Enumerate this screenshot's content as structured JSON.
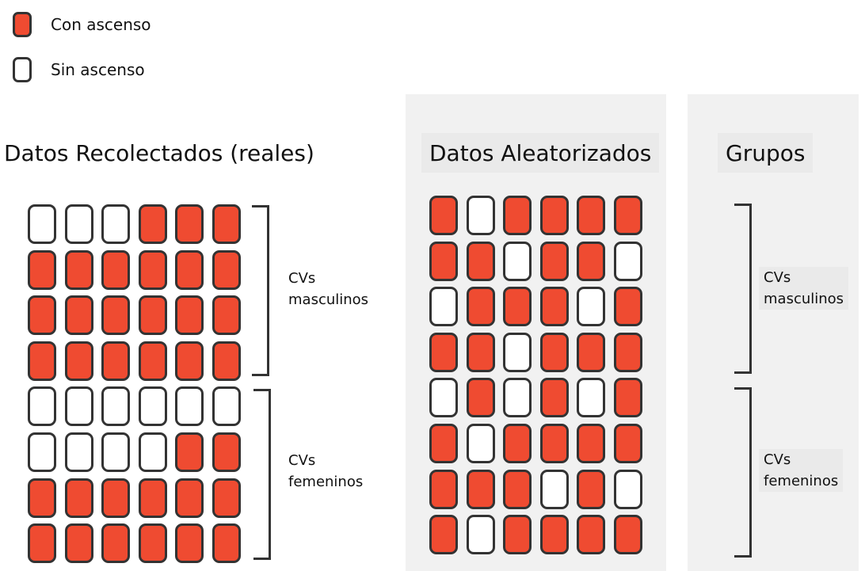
{
  "colors": {
    "con_ascenso": "#ef4b31",
    "sin_ascenso": "#ffffff",
    "border": "#333333"
  },
  "legend": {
    "con_ascenso": "Con ascenso",
    "sin_ascenso": "Sin ascenso"
  },
  "collected": {
    "title": "Datos Recolectados (reales)",
    "rows": [
      [
        0,
        0,
        0,
        1,
        1,
        1
      ],
      [
        1,
        1,
        1,
        1,
        1,
        1
      ],
      [
        1,
        1,
        1,
        1,
        1,
        1
      ],
      [
        1,
        1,
        1,
        1,
        1,
        1
      ],
      [
        0,
        0,
        0,
        0,
        0,
        0
      ],
      [
        0,
        0,
        0,
        0,
        1,
        1
      ],
      [
        1,
        1,
        1,
        1,
        1,
        1
      ],
      [
        1,
        1,
        1,
        1,
        1,
        1
      ]
    ],
    "male_label": {
      "line1": "CVs",
      "line2": "masculinos"
    },
    "female_label": {
      "line1": "CVs",
      "line2": "femeninos"
    }
  },
  "randomized": {
    "title": "Datos Aleatorizados",
    "rows": [
      [
        1,
        0,
        1,
        1,
        1,
        1
      ],
      [
        1,
        1,
        0,
        1,
        1,
        0
      ],
      [
        0,
        1,
        1,
        1,
        0,
        1
      ],
      [
        1,
        1,
        0,
        1,
        1,
        1
      ],
      [
        0,
        1,
        0,
        1,
        0,
        1
      ],
      [
        1,
        0,
        1,
        1,
        1,
        1
      ],
      [
        1,
        1,
        1,
        0,
        1,
        0
      ],
      [
        1,
        0,
        1,
        1,
        1,
        1
      ]
    ]
  },
  "groups": {
    "title": "Grupos",
    "male_label": {
      "line1": "CVs",
      "line2": "masculinos"
    },
    "female_label": {
      "line1": "CVs",
      "line2": "femeninos"
    }
  }
}
